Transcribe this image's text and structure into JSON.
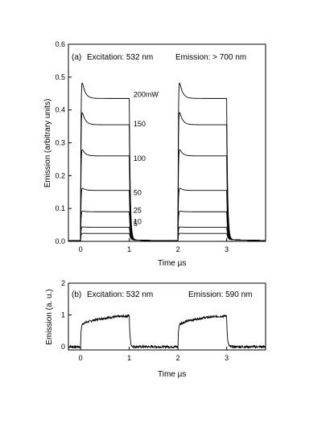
{
  "chart_data": [
    {
      "type": "line",
      "panel_label": "(a)",
      "annotation_left": "Excitation: 532 nm",
      "annotation_right": "Emission:  > 700 nm",
      "xlabel": "Time  µs",
      "ylabel": "Emission (arbitrary units)",
      "xlim": [
        -0.25,
        3.8
      ],
      "ylim": [
        0,
        0.6
      ],
      "xticks": [
        0,
        1,
        2,
        3
      ],
      "yticks": [
        0.0,
        0.1,
        0.2,
        0.3,
        0.4,
        0.5,
        0.6
      ],
      "ytick_labels": [
        "0.0",
        "0.1",
        "0.2",
        "0.3",
        "0.4",
        "0.5",
        "0.6"
      ],
      "pulses": [
        [
          0,
          1
        ],
        [
          2,
          3
        ]
      ],
      "series": [
        {
          "name": "200mW",
          "peak": 0.53,
          "plateau": 0.435
        },
        {
          "name": "150",
          "peak": 0.43,
          "plateau": 0.355
        },
        {
          "name": "100",
          "peak": 0.3,
          "plateau": 0.26
        },
        {
          "name": "50",
          "peak": 0.17,
          "plateau": 0.155
        },
        {
          "name": "25",
          "peak": 0.095,
          "plateau": 0.09
        },
        {
          "name": "10",
          "peak": 0.045,
          "plateau": 0.043
        },
        {
          "name": "5",
          "peak": 0.025,
          "plateau": 0.024
        }
      ]
    },
    {
      "type": "line",
      "panel_label": "(b)",
      "annotation_left": "Excitation: 532 nm",
      "annotation_right": "Emission: 590 nm",
      "xlabel": "Time  µs",
      "ylabel": "Emission (a. u.)",
      "xlim": [
        -0.25,
        3.8
      ],
      "ylim": [
        -0.1,
        2
      ],
      "xticks": [
        0,
        1,
        2,
        3
      ],
      "yticks": [
        0,
        1,
        2
      ],
      "ytick_labels": [
        "0",
        "1",
        "2"
      ],
      "pulses": [
        [
          0,
          1
        ],
        [
          2,
          3
        ]
      ],
      "series": [
        {
          "start": 0.7,
          "end": 0.97,
          "baseline": 0.0
        }
      ]
    }
  ]
}
